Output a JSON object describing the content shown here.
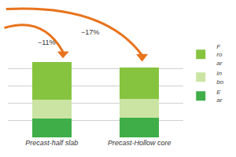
{
  "chart_data": {
    "type": "bar",
    "stacked": true,
    "categories": [
      "Precast-half slab",
      "Precast-Hollow core"
    ],
    "series": [
      {
        "name": "E\nar",
        "color": "#3fae49",
        "values": [
          1.1,
          1.15
        ]
      },
      {
        "name": "In\nbo",
        "color": "#cbe4a3",
        "values": [
          1.1,
          1.1
        ]
      },
      {
        "name": "F\nro\nar",
        "color": "#86c440",
        "values": [
          2.2,
          1.85
        ]
      }
    ],
    "annotations": [
      "−11%",
      "−17%"
    ],
    "ylim": [
      0,
      5
    ],
    "yticks": [
      0,
      1,
      2,
      3,
      4,
      5
    ],
    "grid": true,
    "tick_labels": "x",
    "legend": "right"
  }
}
